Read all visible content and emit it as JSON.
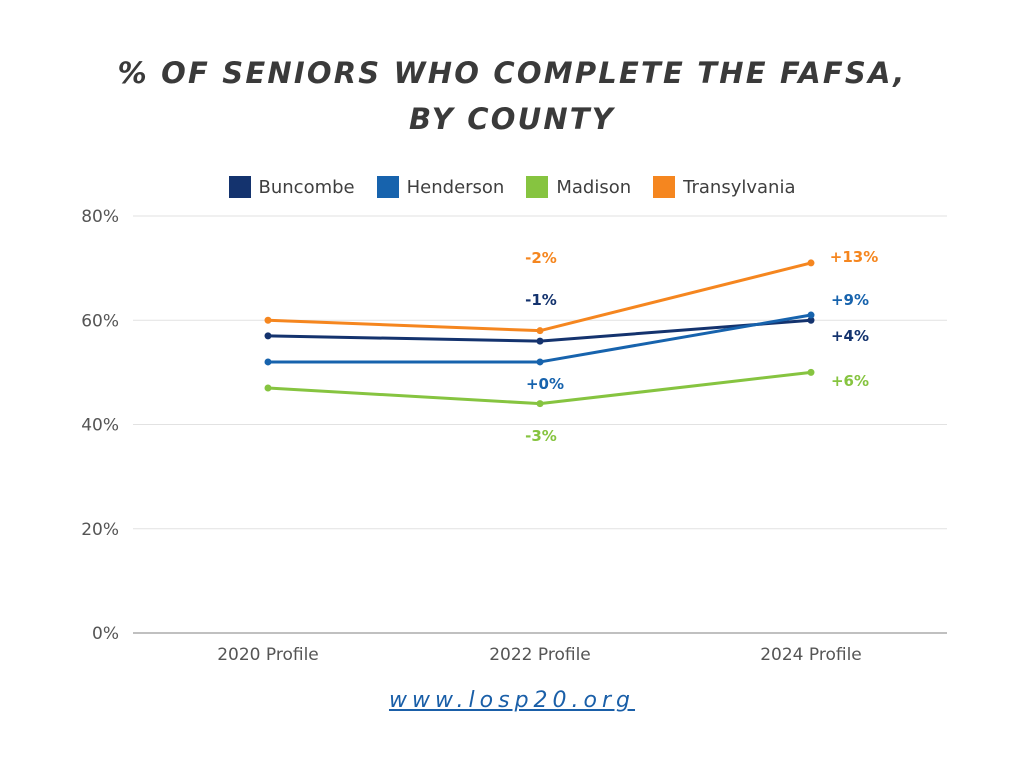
{
  "title": {
    "line1": "% OF SENIORS WHO COMPLETE THE FAFSA,",
    "line2": "BY COUNTY"
  },
  "footer": {
    "url": "www.losp20.org"
  },
  "chart_data": {
    "type": "line",
    "title": "% OF SENIORS WHO COMPLETE THE FAFSA, BY COUNTY",
    "categories": [
      "2020 Profile",
      "2022 Profile",
      "2024 Profile"
    ],
    "ylim": [
      0,
      80
    ],
    "yticks": [
      "0%",
      "20%",
      "40%",
      "60%",
      "80%"
    ],
    "ytick_values": [
      0,
      20,
      40,
      60,
      80
    ],
    "grid": true,
    "legend_position": "top-center",
    "series": [
      {
        "name": "Buncombe",
        "color": "#14336e",
        "values": [
          57,
          56,
          60
        ],
        "labels": [
          null,
          "-1%",
          "+4%"
        ]
      },
      {
        "name": "Henderson",
        "color": "#1763ad",
        "values": [
          52,
          52,
          61
        ],
        "labels": [
          null,
          "+0%",
          "+9%"
        ]
      },
      {
        "name": "Madison",
        "color": "#86c440",
        "values": [
          47,
          44,
          50
        ],
        "labels": [
          null,
          "-3%",
          "+6%"
        ]
      },
      {
        "name": "Transylvania",
        "color": "#f5861f",
        "values": [
          60,
          58,
          71
        ],
        "labels": [
          null,
          "-2%",
          "+13%"
        ]
      }
    ]
  }
}
